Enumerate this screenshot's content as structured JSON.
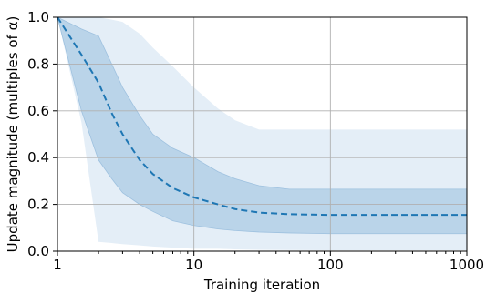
{
  "chart_data": {
    "type": "area",
    "xlabel": "Training iteration",
    "ylabel": "Update magnitude (multiples of α)",
    "xscale": "log",
    "xlim": [
      1,
      1000
    ],
    "ylim": [
      0.0,
      1.0
    ],
    "grid": true,
    "x_ticks": [
      1,
      10,
      100,
      1000
    ],
    "x_tick_labels": [
      "1",
      "10",
      "100",
      "1000"
    ],
    "y_ticks": [
      0.0,
      0.2,
      0.4,
      0.6,
      0.8,
      1.0
    ],
    "y_tick_labels": [
      "0.0",
      "0.2",
      "0.4",
      "0.6",
      "0.8",
      "1.0"
    ],
    "colors": {
      "median": "#1f77b4",
      "outer_band": "#dbe8f4",
      "inner_band": "#b3cfe6",
      "inner_band_edge": "#9ec1df"
    },
    "series": [
      {
        "style": "dashed",
        "role": "median",
        "x": [
          1,
          1.5,
          2,
          2.5,
          3,
          4,
          5,
          7,
          10,
          15,
          20,
          30,
          50,
          100,
          200,
          500,
          1000
        ],
        "y": [
          1.0,
          0.84,
          0.72,
          0.59,
          0.5,
          0.39,
          0.33,
          0.27,
          0.23,
          0.2,
          0.18,
          0.165,
          0.158,
          0.155,
          0.155,
          0.155,
          0.155
        ]
      },
      {
        "role": "inner band",
        "x": [
          1,
          1.5,
          2,
          2.5,
          3,
          4,
          5,
          7,
          10,
          15,
          20,
          30,
          50,
          100,
          200,
          500,
          1000
        ],
        "upper": [
          1.0,
          0.95,
          0.92,
          0.8,
          0.7,
          0.58,
          0.5,
          0.44,
          0.4,
          0.34,
          0.31,
          0.28,
          0.265,
          0.265,
          0.265,
          0.265,
          0.265
        ],
        "lower": [
          1.0,
          0.6,
          0.39,
          0.31,
          0.25,
          0.2,
          0.17,
          0.13,
          0.11,
          0.095,
          0.088,
          0.082,
          0.078,
          0.075,
          0.075,
          0.075,
          0.075
        ]
      },
      {
        "role": "outer band",
        "x": [
          1,
          1.5,
          2,
          2.5,
          3,
          4,
          5,
          7,
          10,
          15,
          20,
          30,
          50,
          100,
          200,
          500,
          1000
        ],
        "upper": [
          1.0,
          1.0,
          1.0,
          0.99,
          0.98,
          0.93,
          0.87,
          0.79,
          0.7,
          0.61,
          0.56,
          0.52,
          0.52,
          0.52,
          0.52,
          0.52,
          0.52
        ],
        "lower": [
          1.0,
          0.55,
          0.04,
          0.035,
          0.03,
          0.025,
          0.02,
          0.015,
          0.01,
          0.01,
          0.008,
          0.006,
          0.005,
          0.004,
          0.004,
          0.004,
          0.004
        ]
      }
    ]
  }
}
